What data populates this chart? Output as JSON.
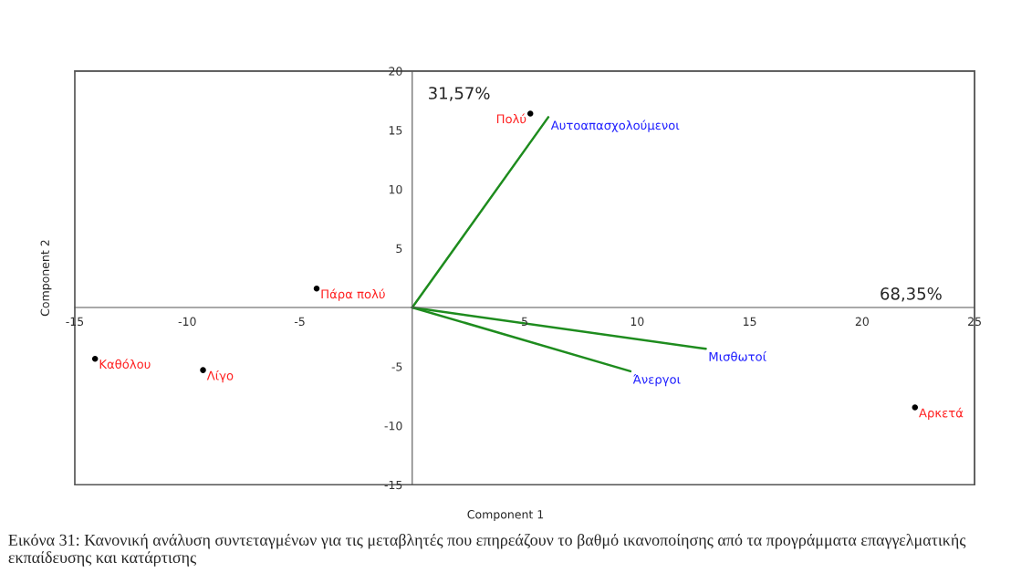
{
  "chart_data": {
    "type": "scatter",
    "xlabel": "Component 1",
    "ylabel": "Component 2",
    "xlim": [
      -15,
      25
    ],
    "ylim": [
      -15,
      20
    ],
    "xticks": [
      -15,
      -10,
      -5,
      5,
      10,
      15,
      20,
      25
    ],
    "yticks": [
      -15,
      -10,
      -5,
      5,
      10,
      15,
      20
    ],
    "grid": false,
    "legend": false,
    "marker": "circle",
    "series": [
      {
        "name": "Καθόλου",
        "color": "#000000",
        "x": [
          -14.1
        ],
        "values": [
          -4.35
        ]
      },
      {
        "name": "Λίγο",
        "color": "#000000",
        "x": [
          -9.3
        ],
        "values": [
          -5.3
        ]
      },
      {
        "name": "Πάρα πολύ",
        "color": "#000000",
        "x": [
          -4.25
        ],
        "values": [
          1.6
        ]
      },
      {
        "name": "Πολύ",
        "color": "#000000",
        "x": [
          5.25
        ],
        "values": [
          16.4
        ]
      },
      {
        "name": "Αρκετά",
        "color": "#000000",
        "x": [
          22.35
        ],
        "values": [
          -8.45
        ]
      },
      {
        "type": "line",
        "marker": "none",
        "name": "Αυτοαπασχολούμενοι",
        "color": "#1e8c1e",
        "x": [
          0,
          6.05
        ],
        "values": [
          0,
          16.1
        ]
      },
      {
        "type": "line",
        "marker": "none",
        "name": "Μισθωτοί",
        "color": "#1e8c1e",
        "x": [
          0,
          13.05
        ],
        "values": [
          0,
          -3.5
        ]
      },
      {
        "type": "line",
        "marker": "none",
        "name": "Άνεργοι",
        "color": "#1e8c1e",
        "x": [
          0,
          9.7
        ],
        "values": [
          0,
          -5.4
        ]
      }
    ],
    "annotations": [
      "31,57%",
      "68,35%",
      "Εικόνα 31: Κανονική ανάλυση συντεταγμένων για τις μεταβλητές που επηρεάζουν το βαθμό ικανοποίησης από τα προγράμματα επαγγελματικής εκπαίδευσης και κατάρτισης"
    ]
  }
}
